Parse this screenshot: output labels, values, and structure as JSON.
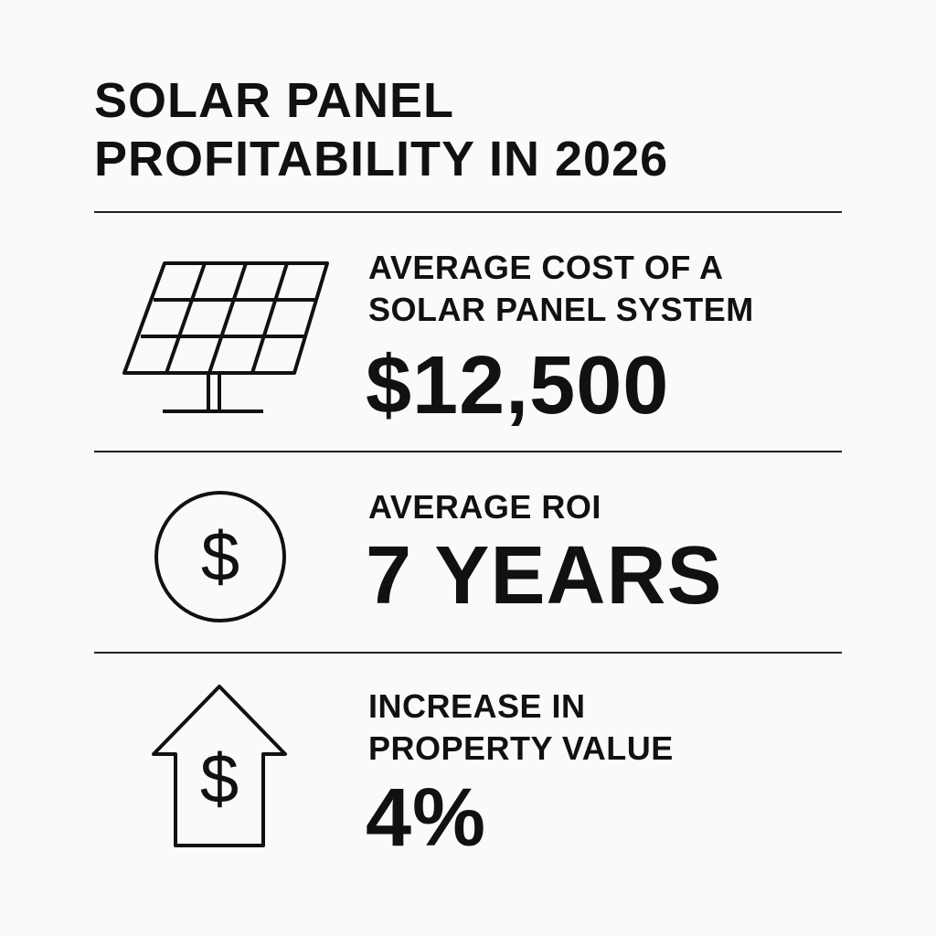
{
  "title": {
    "line1": "SOLAR PANEL",
    "line2": "PROFITABILITY IN 2026"
  },
  "sections": [
    {
      "icon": "solar-panel-icon",
      "label_line1": "AVERAGE COST OF A",
      "label_line2": "SOLAR PANEL SYSTEM",
      "value": "$12,500"
    },
    {
      "icon": "dollar-coin-icon",
      "label_line1": "AVERAGE ROI",
      "value": "7 YEARS"
    },
    {
      "icon": "house-arrow-dollar-icon",
      "label_line1": "INCREASE IN",
      "label_line2": "PROPERTY VALUE",
      "value": "4%"
    }
  ]
}
